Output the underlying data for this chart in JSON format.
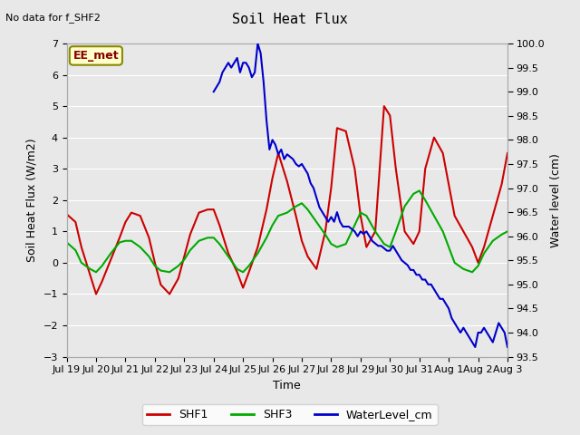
{
  "title": "Soil Heat Flux",
  "title_note": "No data for f_SHF2",
  "ylabel_left": "Soil Heat Flux (W/m2)",
  "ylabel_right": "Water level (cm)",
  "xlabel": "Time",
  "ylim_left": [
    -3.0,
    7.0
  ],
  "ylim_right": [
    93.5,
    100.0
  ],
  "bg_color": "#e8e8e8",
  "plot_bg_color": "#e8e8e8",
  "grid_color": "#ffffff",
  "annotation_box": "EE_met",
  "annotation_box_facecolor": "#ffffcc",
  "annotation_box_edgecolor": "#888800",
  "annotation_text_color": "#880000",
  "legend_items": [
    "SHF1",
    "SHF3",
    "WaterLevel_cm"
  ],
  "shf1_color": "#cc0000",
  "shf3_color": "#00aa00",
  "wl_color": "#0000cc",
  "tick_dates": [
    "Jul 19",
    "Jul 20",
    "Jul 21",
    "Jul 22",
    "Jul 23",
    "Jul 24",
    "Jul 25",
    "Jul 26",
    "Jul 27",
    "Jul 28",
    "Jul 29",
    "Jul 30",
    "Jul 31",
    "Aug 1",
    "Aug 2",
    "Aug 3"
  ],
  "shf1_x": [
    0,
    0.3,
    0.5,
    0.8,
    1.0,
    1.2,
    1.5,
    1.8,
    2.0,
    2.2,
    2.5,
    2.8,
    3.0,
    3.2,
    3.5,
    3.8,
    4.0,
    4.2,
    4.5,
    4.8,
    5.0,
    5.2,
    5.5,
    5.8,
    6.0,
    6.2,
    6.5,
    6.8,
    7.0,
    7.2,
    7.5,
    7.8,
    8.0,
    8.2,
    8.5,
    8.8,
    9.0,
    9.2,
    9.5,
    9.8,
    10.0,
    10.2,
    10.5,
    10.8,
    11.0,
    11.2,
    11.5,
    11.8,
    12.0,
    12.2,
    12.5,
    12.8,
    13.0,
    13.2,
    13.5,
    13.8,
    14.0,
    14.2,
    14.5,
    14.8,
    15.0
  ],
  "shf1_y": [
    1.55,
    1.3,
    0.5,
    -0.4,
    -1.0,
    -0.6,
    0.1,
    0.8,
    1.3,
    1.6,
    1.5,
    0.8,
    0.0,
    -0.7,
    -1.0,
    -0.5,
    0.2,
    0.9,
    1.6,
    1.7,
    1.7,
    1.2,
    0.3,
    -0.3,
    -0.8,
    -0.3,
    0.5,
    1.7,
    2.7,
    3.5,
    2.6,
    1.5,
    0.7,
    0.2,
    -0.2,
    1.0,
    2.4,
    4.3,
    4.2,
    3.0,
    1.5,
    0.5,
    1.0,
    5.0,
    4.7,
    3.0,
    1.0,
    0.6,
    1.0,
    3.0,
    4.0,
    3.5,
    2.5,
    1.5,
    1.0,
    0.5,
    0.0,
    0.5,
    1.5,
    2.5,
    3.5
  ],
  "shf3_x": [
    0,
    0.3,
    0.5,
    0.8,
    1.0,
    1.2,
    1.5,
    1.8,
    2.0,
    2.2,
    2.5,
    2.8,
    3.0,
    3.2,
    3.5,
    3.8,
    4.0,
    4.2,
    4.5,
    4.8,
    5.0,
    5.2,
    5.5,
    5.8,
    6.0,
    6.2,
    6.5,
    6.8,
    7.0,
    7.2,
    7.5,
    7.8,
    8.0,
    8.2,
    8.5,
    8.8,
    9.0,
    9.2,
    9.5,
    9.8,
    10.0,
    10.2,
    10.5,
    10.8,
    11.0,
    11.2,
    11.5,
    11.8,
    12.0,
    12.2,
    12.5,
    12.8,
    13.0,
    13.2,
    13.5,
    13.8,
    14.0,
    14.2,
    14.5,
    14.8,
    15.0
  ],
  "shf3_y": [
    0.65,
    0.4,
    0.0,
    -0.2,
    -0.3,
    -0.1,
    0.3,
    0.65,
    0.7,
    0.7,
    0.5,
    0.2,
    -0.1,
    -0.25,
    -0.3,
    -0.1,
    0.1,
    0.4,
    0.7,
    0.8,
    0.8,
    0.6,
    0.2,
    -0.2,
    -0.3,
    -0.1,
    0.3,
    0.8,
    1.2,
    1.5,
    1.6,
    1.8,
    1.9,
    1.7,
    1.3,
    0.9,
    0.6,
    0.5,
    0.6,
    1.2,
    1.6,
    1.5,
    1.0,
    0.6,
    0.5,
    1.0,
    1.8,
    2.2,
    2.3,
    2.0,
    1.5,
    1.0,
    0.5,
    0.0,
    -0.2,
    -0.3,
    -0.1,
    0.3,
    0.7,
    0.9,
    1.0
  ],
  "wl_x": [
    5.0,
    5.1,
    5.2,
    5.3,
    5.4,
    5.5,
    5.6,
    5.7,
    5.8,
    5.9,
    6.0,
    6.1,
    6.2,
    6.3,
    6.4,
    6.5,
    6.6,
    6.7,
    6.8,
    6.9,
    7.0,
    7.1,
    7.2,
    7.3,
    7.4,
    7.5,
    7.6,
    7.7,
    7.8,
    7.9,
    8.0,
    8.1,
    8.2,
    8.3,
    8.4,
    8.5,
    8.6,
    8.7,
    8.8,
    8.9,
    9.0,
    9.1,
    9.2,
    9.3,
    9.4,
    9.5,
    9.6,
    9.7,
    9.8,
    9.9,
    10.0,
    10.1,
    10.2,
    10.3,
    10.4,
    10.5,
    10.6,
    10.7,
    10.8,
    10.9,
    11.0,
    11.1,
    11.2,
    11.3,
    11.4,
    11.5,
    11.6,
    11.7,
    11.8,
    11.9,
    12.0,
    12.1,
    12.2,
    12.3,
    12.4,
    12.5,
    12.6,
    12.7,
    12.8,
    12.9,
    13.0,
    13.1,
    13.2,
    13.3,
    13.4,
    13.5,
    13.6,
    13.7,
    13.8,
    13.9,
    14.0,
    14.1,
    14.2,
    14.3,
    14.4,
    14.5,
    14.6,
    14.7,
    14.8,
    14.9,
    15.0
  ],
  "wl_y": [
    99.0,
    99.1,
    99.2,
    99.4,
    99.5,
    99.6,
    99.5,
    99.6,
    99.7,
    99.4,
    99.6,
    99.6,
    99.5,
    99.3,
    99.4,
    100.0,
    99.8,
    99.2,
    98.4,
    97.8,
    98.0,
    97.9,
    97.7,
    97.8,
    97.6,
    97.7,
    97.65,
    97.6,
    97.5,
    97.45,
    97.5,
    97.4,
    97.3,
    97.1,
    97.0,
    96.8,
    96.6,
    96.5,
    96.4,
    96.3,
    96.4,
    96.3,
    96.5,
    96.3,
    96.2,
    96.2,
    96.2,
    96.15,
    96.1,
    96.0,
    96.1,
    96.05,
    96.1,
    96.0,
    95.9,
    95.85,
    95.8,
    95.8,
    95.75,
    95.7,
    95.7,
    95.8,
    95.7,
    95.6,
    95.5,
    95.45,
    95.4,
    95.3,
    95.3,
    95.2,
    95.2,
    95.1,
    95.1,
    95.0,
    95.0,
    94.9,
    94.8,
    94.7,
    94.7,
    94.6,
    94.5,
    94.3,
    94.2,
    94.1,
    94.0,
    94.1,
    94.0,
    93.9,
    93.8,
    93.7,
    94.0,
    94.0,
    94.1,
    94.0,
    93.9,
    93.8,
    94.0,
    94.2,
    94.1,
    94.0,
    93.7
  ]
}
